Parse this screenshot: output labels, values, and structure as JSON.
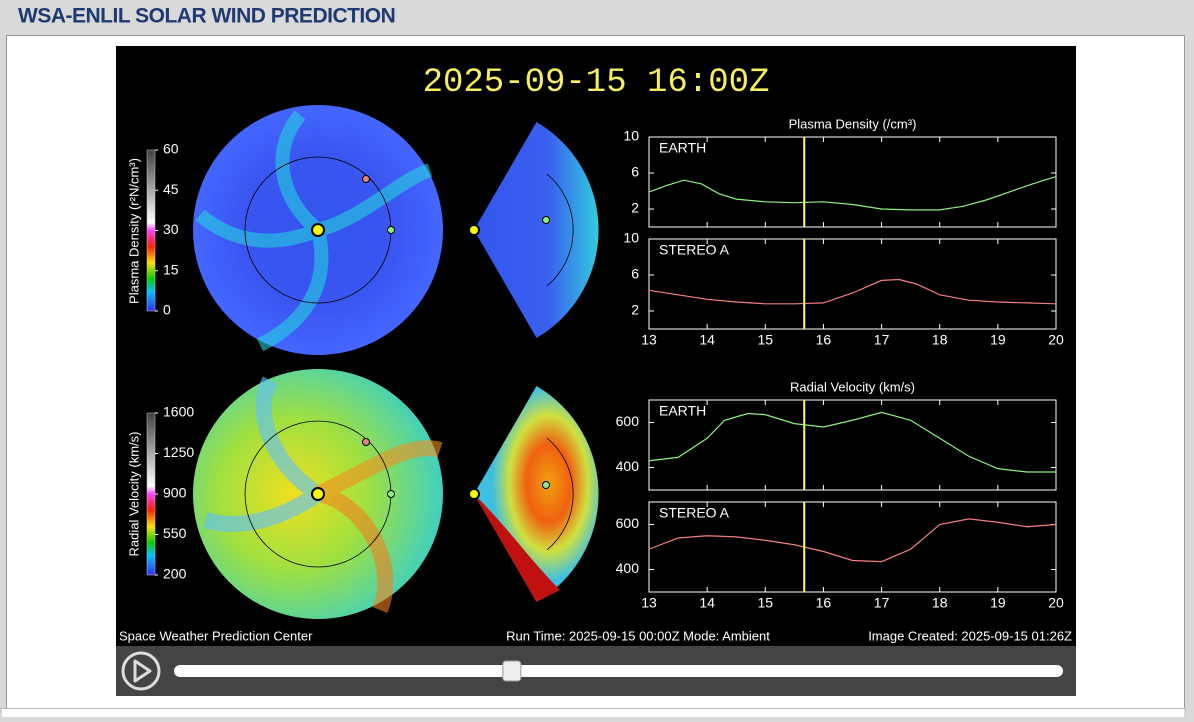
{
  "header": {
    "title": "WSA-ENLIL SOLAR WIND PREDICTION"
  },
  "viewer": {
    "timestamp": "2025-09-15 16:00Z",
    "footer": {
      "left": "Space Weather Prediction Center",
      "center": "Run Time: 2025-09-15 00:00Z  Mode: Ambient",
      "right": "Image Created: 2025-09-15 01:26Z"
    },
    "colorbars": [
      {
        "label": "Plasma Density (r²N/cm³)",
        "ticks": [
          0,
          15,
          30,
          45,
          60
        ]
      },
      {
        "label": "Radial Velocity (km/s)",
        "ticks": [
          200,
          550,
          900,
          1250,
          1600
        ]
      }
    ],
    "panels": [
      {
        "title": "Plasma Density (/cm³)",
        "xlim": [
          13,
          20
        ],
        "xticks": [
          13,
          14,
          15,
          16,
          17,
          18,
          19,
          20
        ],
        "current_time": 15.67,
        "plots": [
          {
            "name": "EARTH",
            "color": "#8fef7f",
            "ylim": [
              0,
              10
            ],
            "yticks": [
              2,
              6,
              10
            ],
            "x": [
              13,
              13.3,
              13.6,
              13.9,
              14.2,
              14.5,
              15,
              15.5,
              16,
              16.5,
              17,
              17.5,
              18,
              18.4,
              18.8,
              19.2,
              19.6,
              20
            ],
            "values": [
              3.9,
              4.6,
              5.2,
              4.8,
              3.7,
              3.1,
              2.8,
              2.7,
              2.8,
              2.5,
              2.0,
              1.9,
              1.9,
              2.3,
              3.0,
              3.9,
              4.8,
              5.6
            ]
          },
          {
            "name": "STEREO A",
            "color": "#f08080",
            "ylim": [
              0,
              10
            ],
            "yticks": [
              2,
              6,
              10
            ],
            "x": [
              13,
              13.5,
              14,
              14.5,
              15,
              15.5,
              16,
              16.5,
              17,
              17.3,
              17.6,
              18,
              18.5,
              19,
              19.5,
              20
            ],
            "values": [
              4.3,
              3.8,
              3.3,
              3.0,
              2.8,
              2.8,
              2.9,
              4.0,
              5.4,
              5.5,
              5.0,
              3.8,
              3.2,
              3.0,
              2.9,
              2.8
            ]
          }
        ]
      },
      {
        "title": "Radial Velocity (km/s)",
        "xlim": [
          13,
          20
        ],
        "xticks": [
          13,
          14,
          15,
          16,
          17,
          18,
          19,
          20
        ],
        "current_time": 15.67,
        "plots": [
          {
            "name": "EARTH",
            "color": "#8fef7f",
            "ylim": [
              300,
              700
            ],
            "yticks": [
              400,
              600
            ],
            "x": [
              13,
              13.5,
              14,
              14.3,
              14.7,
              15,
              15.5,
              16,
              16.5,
              17,
              17.5,
              18,
              18.5,
              19,
              19.5,
              20
            ],
            "values": [
              430,
              445,
              530,
              610,
              640,
              635,
              595,
              580,
              610,
              645,
              610,
              530,
              450,
              395,
              380,
              380
            ]
          },
          {
            "name": "STEREO A",
            "color": "#f08080",
            "ylim": [
              300,
              700
            ],
            "yticks": [
              400,
              600
            ],
            "x": [
              13,
              13.5,
              14,
              14.5,
              15,
              15.5,
              16,
              16.5,
              17,
              17.5,
              18,
              18.5,
              19,
              19.5,
              20
            ],
            "values": [
              490,
              540,
              550,
              545,
              530,
              510,
              480,
              440,
              435,
              490,
              600,
              625,
              610,
              590,
              600
            ]
          }
        ]
      }
    ],
    "slider": {
      "position": 0.38
    }
  }
}
